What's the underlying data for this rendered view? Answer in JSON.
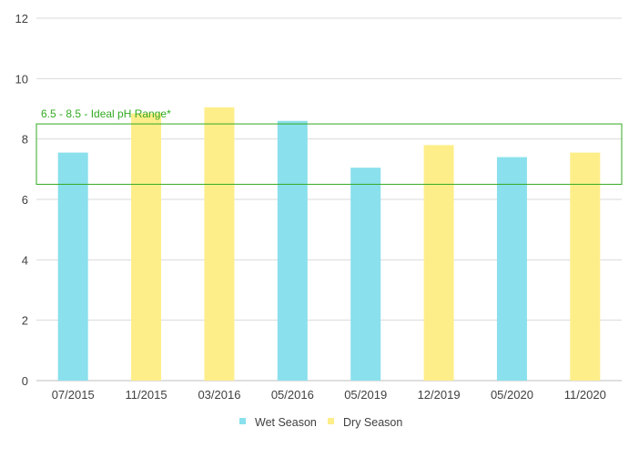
{
  "chart_data": {
    "type": "bar",
    "categories": [
      "07/2015",
      "11/2015",
      "03/2016",
      "05/2016",
      "05/2019",
      "12/2019",
      "05/2020",
      "11/2020"
    ],
    "values": [
      7.55,
      8.85,
      9.05,
      8.6,
      7.05,
      7.8,
      7.4,
      7.55
    ],
    "season": [
      "Wet Season",
      "Dry Season",
      "Dry Season",
      "Wet Season",
      "Wet Season",
      "Dry Season",
      "Wet Season",
      "Dry Season"
    ],
    "legend": [
      {
        "name": "Wet Season",
        "color": "#8ae0ec"
      },
      {
        "name": "Dry Season",
        "color": "#fdee8a"
      }
    ],
    "ylim": [
      0,
      12
    ],
    "yticks": [
      0,
      2,
      4,
      6,
      8,
      10,
      12
    ],
    "grid": true,
    "legend_position": "bottom-center",
    "annotation": {
      "text": "6.5 - 8.5 - Ideal pH Range*",
      "ymin": 6.5,
      "ymax": 8.5,
      "color": "#33aa22"
    },
    "title": "",
    "xlabel": "",
    "ylabel": ""
  }
}
